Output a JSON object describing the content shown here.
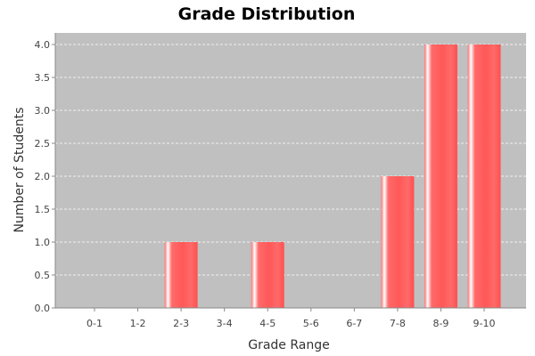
{
  "chart_data": {
    "type": "bar",
    "title": "Grade Distribution",
    "xlabel": "Grade Range",
    "ylabel": "Number of Students",
    "categories": [
      "0-1",
      "1-2",
      "2-3",
      "3-4",
      "4-5",
      "5-6",
      "6-7",
      "7-8",
      "8-9",
      "9-10"
    ],
    "values": [
      0,
      0,
      1,
      0,
      1,
      0,
      0,
      2,
      4,
      4
    ],
    "ylim": [
      0,
      4.0
    ],
    "yticks": [
      "0.0",
      "0.5",
      "1.0",
      "1.5",
      "2.0",
      "2.5",
      "3.0",
      "3.5",
      "4.0"
    ],
    "grid": true,
    "legend": "none",
    "colors": {
      "bar": "#ff5555",
      "bar_highlight": "#ffffff",
      "plot_background": "#c0c0c0",
      "gridline": "#ffffff"
    }
  }
}
